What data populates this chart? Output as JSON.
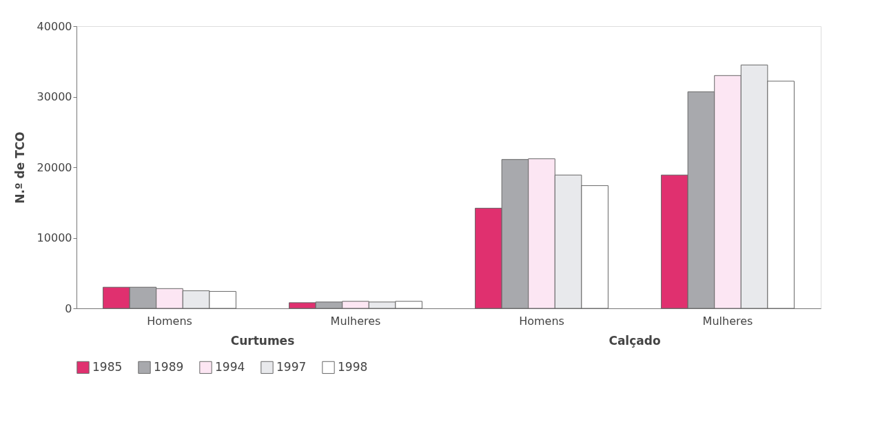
{
  "chart_data": {
    "type": "bar",
    "ylabel": "N.º de TCO",
    "categories": [
      "Homens",
      "Mulheres",
      "Homens",
      "Mulheres"
    ],
    "series": [
      {
        "name": "1985",
        "color": "#e0306f",
        "values": [
          3000,
          800,
          14200,
          18900
        ]
      },
      {
        "name": "1989",
        "color": "#a8a9ad",
        "values": [
          3000,
          900,
          21100,
          30700
        ]
      },
      {
        "name": "1994",
        "color": "#fce6f3",
        "values": [
          2800,
          1000,
          21200,
          33000
        ]
      },
      {
        "name": "1997",
        "color": "#e8e9ec",
        "values": [
          2500,
          900,
          18900,
          34500
        ]
      },
      {
        "name": "1998",
        "color": "#ffffff",
        "values": [
          2400,
          1000,
          17400,
          32200
        ]
      }
    ],
    "ylim": [
      0,
      40000
    ],
    "yticks": [
      0,
      10000,
      20000,
      30000,
      40000
    ],
    "annotations": [
      "Curtumes",
      "Calçado"
    ],
    "grid": false,
    "legend": "bottom left"
  }
}
